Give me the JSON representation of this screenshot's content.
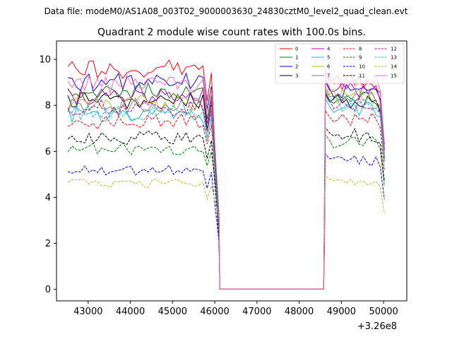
{
  "chart_data": {
    "type": "line",
    "suptitle": "Data file: modeM0/AS1A08_003T02_9000003630_24830cztM0_level2_quad_clean.evt",
    "title": "Quadrant 2 module wise count rates with 100.0s bins.",
    "xlabel": "",
    "ylabel": "",
    "offset_label": "+3.26e8",
    "xlim": [
      42250,
      50550
    ],
    "ylim": [
      -0.5,
      10.8
    ],
    "x_ticks": [
      43000,
      44000,
      45000,
      46000,
      47000,
      48000,
      49000,
      50000
    ],
    "y_ticks": [
      0,
      2,
      4,
      6,
      8,
      10
    ],
    "x_tick_labels": [
      "43000",
      "44000",
      "45000",
      "46000",
      "47000",
      "48000",
      "49000",
      "50000"
    ],
    "y_tick_labels": [
      "0",
      "2",
      "4",
      "6",
      "8",
      "10"
    ],
    "segments": {
      "seg1": {
        "start": 42520,
        "step": 100,
        "count": 35
      },
      "gap": [
        46120,
        48580
      ],
      "seg2": {
        "start": 48620,
        "step": 100,
        "count": 15
      }
    },
    "legend_location": "upper-right",
    "series": [
      {
        "name": "0",
        "color": "#ff0000",
        "dash": "solid",
        "level1": 9.6,
        "level2": 9.0
      },
      {
        "name": "1",
        "color": "#008000",
        "dash": "solid",
        "level1": 8.6,
        "level2": 8.2
      },
      {
        "name": "2",
        "color": "#0000ff",
        "dash": "solid",
        "level1": 9.0,
        "level2": 8.7
      },
      {
        "name": "3",
        "color": "#000000",
        "dash": "solid",
        "level1": 8.2,
        "level2": 8.1
      },
      {
        "name": "4",
        "color": "#bf00bf",
        "dash": "solid",
        "level1": 8.4,
        "level2": 8.6
      },
      {
        "name": "5",
        "color": "#17becf",
        "dash": "solid",
        "level1": 7.6,
        "level2": 7.9
      },
      {
        "name": "6",
        "color": "#bcbd22",
        "dash": "solid",
        "level1": 8.1,
        "level2": 8.4
      },
      {
        "name": "7",
        "color": "#7f7f7f",
        "dash": "solid",
        "level1": 8.0,
        "level2": 8.3
      },
      {
        "name": "8",
        "color": "#ff0000",
        "dash": "dashed",
        "level1": 7.3,
        "level2": 7.4
      },
      {
        "name": "9",
        "color": "#008000",
        "dash": "dashed",
        "level1": 6.1,
        "level2": 6.4
      },
      {
        "name": "10",
        "color": "#0000ff",
        "dash": "dashed",
        "level1": 5.2,
        "level2": 5.6
      },
      {
        "name": "11",
        "color": "#000000",
        "dash": "dashed",
        "level1": 6.6,
        "level2": 6.7
      },
      {
        "name": "12",
        "color": "#bf00bf",
        "dash": "dashed",
        "level1": 7.9,
        "level2": 8.1
      },
      {
        "name": "13",
        "color": "#17becf",
        "dash": "dashed",
        "level1": 7.7,
        "level2": 8.0
      },
      {
        "name": "14",
        "color": "#bcbd22",
        "dash": "dashed",
        "level1": 4.6,
        "level2": 4.7
      },
      {
        "name": "15",
        "color": "#ff69b4",
        "dash": "solid",
        "level1": 8.9,
        "level2": 9.1
      }
    ]
  }
}
